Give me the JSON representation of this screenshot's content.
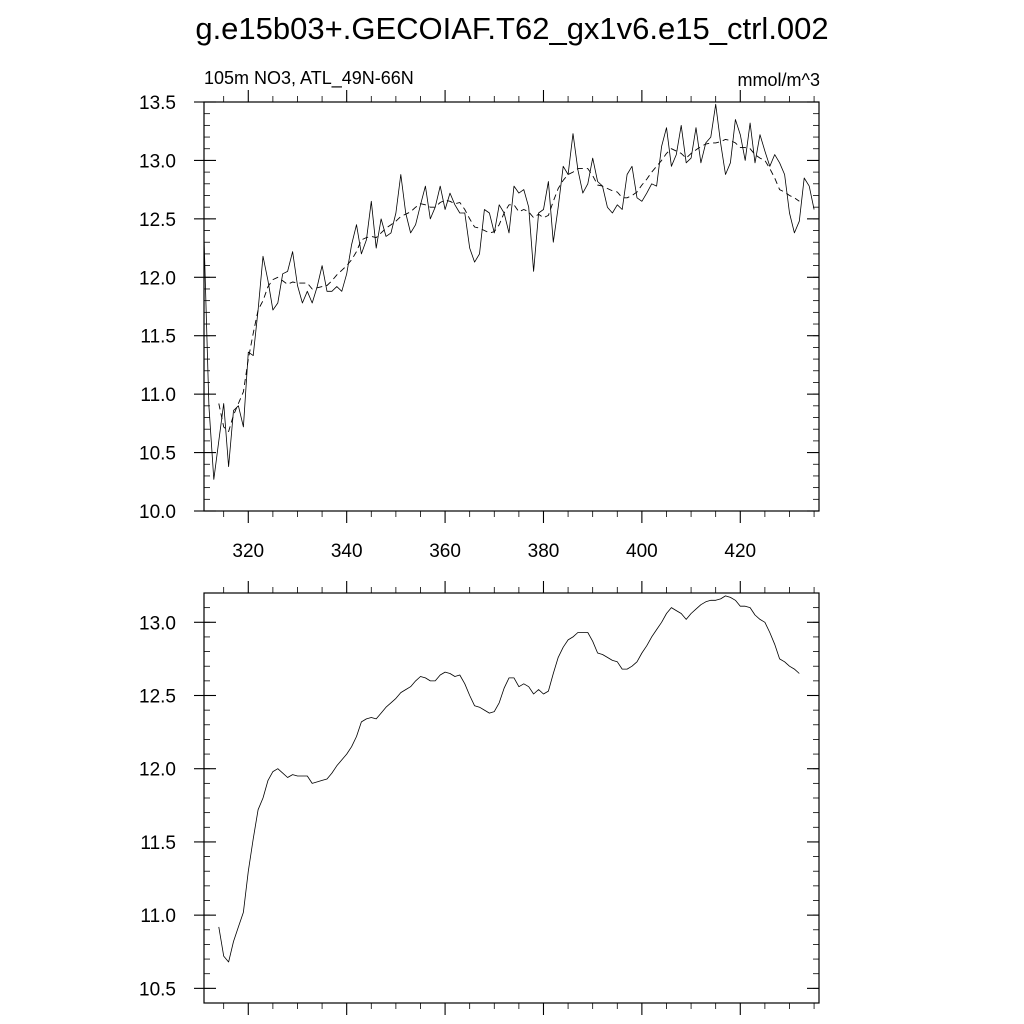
{
  "title": "g.e15b03+.GECOIAF.T62_gx1v6.e15_ctrl.002",
  "chart_data": [
    {
      "type": "line",
      "left_label": "105m NO3, ATL_49N-66N",
      "right_label": "mmol/m^3",
      "xlim": [
        311,
        436
      ],
      "ylim": [
        10.0,
        13.5
      ],
      "yticks": [
        10.0,
        10.5,
        11.0,
        11.5,
        12.0,
        12.5,
        13.0,
        13.5
      ],
      "ytick_labels": [
        "10.0",
        "10.5",
        "11.0",
        "11.5",
        "12.0",
        "12.5",
        "13.0",
        "13.5"
      ],
      "xticks": [
        320,
        340,
        360,
        380,
        400,
        420
      ],
      "xtick_labels": [
        "320",
        "340",
        "360",
        "380",
        "400",
        "420"
      ],
      "grid": false,
      "series": [
        {
          "style": "solid",
          "x": [
            311,
            312,
            313,
            314,
            315,
            316,
            317,
            318,
            319,
            320,
            321,
            322,
            323,
            324,
            325,
            326,
            327,
            328,
            329,
            330,
            331,
            332,
            333,
            334,
            335,
            336,
            337,
            338,
            339,
            340,
            341,
            342,
            343,
            344,
            345,
            346,
            347,
            348,
            349,
            350,
            351,
            352,
            353,
            354,
            355,
            356,
            357,
            358,
            359,
            360,
            361,
            362,
            363,
            364,
            365,
            366,
            367,
            368,
            369,
            370,
            371,
            372,
            373,
            374,
            375,
            376,
            377,
            378,
            379,
            380,
            381,
            382,
            383,
            384,
            385,
            386,
            387,
            388,
            389,
            390,
            391,
            392,
            393,
            394,
            395,
            396,
            397,
            398,
            399,
            400,
            401,
            402,
            403,
            404,
            405,
            406,
            407,
            408,
            409,
            410,
            411,
            412,
            413,
            414,
            415,
            416,
            417,
            418,
            419,
            420,
            421,
            422,
            423,
            424,
            425,
            426,
            427,
            428,
            429,
            430,
            431,
            432,
            433,
            434,
            435
          ],
          "values": [
            12.35,
            10.9,
            10.27,
            10.6,
            10.92,
            10.38,
            10.86,
            10.9,
            10.72,
            11.36,
            11.33,
            11.72,
            12.18,
            11.97,
            11.72,
            11.78,
            12.03,
            12.05,
            12.22,
            11.93,
            11.78,
            11.88,
            11.78,
            11.92,
            12.1,
            11.88,
            11.88,
            11.92,
            11.88,
            12.03,
            12.28,
            12.45,
            12.2,
            12.32,
            12.65,
            12.25,
            12.5,
            12.35,
            12.38,
            12.55,
            12.88,
            12.55,
            12.38,
            12.45,
            12.62,
            12.78,
            12.5,
            12.6,
            12.78,
            12.58,
            12.72,
            12.62,
            12.55,
            12.55,
            12.25,
            12.13,
            12.2,
            12.58,
            12.55,
            12.38,
            12.62,
            12.55,
            12.38,
            12.78,
            12.72,
            12.75,
            12.6,
            12.05,
            12.55,
            12.58,
            12.82,
            12.3,
            12.6,
            12.95,
            12.88,
            13.23,
            12.92,
            12.72,
            12.8,
            13.02,
            12.82,
            12.78,
            12.6,
            12.55,
            12.62,
            12.58,
            12.88,
            12.95,
            12.68,
            12.65,
            12.72,
            12.8,
            12.78,
            13.12,
            13.28,
            12.95,
            13.05,
            13.3,
            12.98,
            13.02,
            13.28,
            12.98,
            13.15,
            13.2,
            13.48,
            13.15,
            12.88,
            12.98,
            13.35,
            13.22,
            13.0,
            13.32,
            12.98,
            13.22,
            13.08,
            12.95,
            13.05,
            12.98,
            12.88,
            12.55,
            12.38,
            12.48,
            12.85,
            12.78,
            12.58
          ]
        },
        {
          "style": "dashed",
          "x": [
            314,
            315,
            316,
            317,
            318,
            319,
            320,
            321,
            322,
            323,
            324,
            325,
            326,
            327,
            328,
            329,
            330,
            331,
            332,
            333,
            334,
            335,
            336,
            337,
            338,
            339,
            340,
            341,
            342,
            343,
            344,
            345,
            346,
            347,
            348,
            349,
            350,
            351,
            352,
            353,
            354,
            355,
            356,
            357,
            358,
            359,
            360,
            361,
            362,
            363,
            364,
            365,
            366,
            367,
            368,
            369,
            370,
            371,
            372,
            373,
            374,
            375,
            376,
            377,
            378,
            379,
            380,
            381,
            382,
            383,
            384,
            385,
            386,
            387,
            388,
            389,
            390,
            391,
            392,
            393,
            394,
            395,
            396,
            397,
            398,
            399,
            400,
            401,
            402,
            403,
            404,
            405,
            406,
            407,
            408,
            409,
            410,
            411,
            412,
            413,
            414,
            415,
            416,
            417,
            418,
            419,
            420,
            421,
            422,
            423,
            424,
            425,
            426,
            427,
            428,
            429,
            430,
            431,
            432
          ],
          "values": [
            10.92,
            10.72,
            10.68,
            10.82,
            10.92,
            11.02,
            11.3,
            11.52,
            11.72,
            11.8,
            11.92,
            11.98,
            12.0,
            11.97,
            11.94,
            11.96,
            11.95,
            11.95,
            11.95,
            11.9,
            11.91,
            11.92,
            11.93,
            11.97,
            12.02,
            12.06,
            12.1,
            12.15,
            12.22,
            12.32,
            12.34,
            12.35,
            12.34,
            12.38,
            12.42,
            12.45,
            12.48,
            12.52,
            12.54,
            12.56,
            12.6,
            12.63,
            12.62,
            12.6,
            12.6,
            12.64,
            12.66,
            12.65,
            12.63,
            12.64,
            12.58,
            12.5,
            12.43,
            12.42,
            12.4,
            12.38,
            12.39,
            12.45,
            12.55,
            12.62,
            12.62,
            12.56,
            12.58,
            12.56,
            12.51,
            12.54,
            12.51,
            12.53,
            12.65,
            12.76,
            12.83,
            12.88,
            12.9,
            12.93,
            12.93,
            12.93,
            12.87,
            12.79,
            12.78,
            12.76,
            12.74,
            12.73,
            12.68,
            12.68,
            12.7,
            12.73,
            12.79,
            12.84,
            12.9,
            12.95,
            13.0,
            13.06,
            13.1,
            13.08,
            13.06,
            13.02,
            13.06,
            13.09,
            13.12,
            13.14,
            13.15,
            13.15,
            13.16,
            13.18,
            13.17,
            13.15,
            13.11,
            13.11,
            13.1,
            13.05,
            13.02,
            13.0,
            12.93,
            12.85,
            12.75,
            12.73,
            12.7,
            12.68,
            12.65
          ]
        }
      ]
    },
    {
      "type": "line",
      "xlim": [
        311,
        436
      ],
      "ylim": [
        10.4,
        13.2
      ],
      "yticks": [
        10.5,
        11.0,
        11.5,
        12.0,
        12.5,
        13.0
      ],
      "ytick_labels": [
        "10.5",
        "11.0",
        "11.5",
        "12.0",
        "12.5",
        "13.0"
      ],
      "xticks": [
        320,
        340,
        360,
        380,
        400,
        420
      ],
      "grid": false,
      "series": [
        {
          "style": "solid",
          "x": [
            314,
            315,
            316,
            317,
            318,
            319,
            320,
            321,
            322,
            323,
            324,
            325,
            326,
            327,
            328,
            329,
            330,
            331,
            332,
            333,
            334,
            335,
            336,
            337,
            338,
            339,
            340,
            341,
            342,
            343,
            344,
            345,
            346,
            347,
            348,
            349,
            350,
            351,
            352,
            353,
            354,
            355,
            356,
            357,
            358,
            359,
            360,
            361,
            362,
            363,
            364,
            365,
            366,
            367,
            368,
            369,
            370,
            371,
            372,
            373,
            374,
            375,
            376,
            377,
            378,
            379,
            380,
            381,
            382,
            383,
            384,
            385,
            386,
            387,
            388,
            389,
            390,
            391,
            392,
            393,
            394,
            395,
            396,
            397,
            398,
            399,
            400,
            401,
            402,
            403,
            404,
            405,
            406,
            407,
            408,
            409,
            410,
            411,
            412,
            413,
            414,
            415,
            416,
            417,
            418,
            419,
            420,
            421,
            422,
            423,
            424,
            425,
            426,
            427,
            428,
            429,
            430,
            431,
            432
          ],
          "values": [
            10.92,
            10.72,
            10.68,
            10.82,
            10.92,
            11.02,
            11.3,
            11.52,
            11.72,
            11.8,
            11.92,
            11.98,
            12.0,
            11.97,
            11.94,
            11.96,
            11.95,
            11.95,
            11.95,
            11.9,
            11.91,
            11.92,
            11.93,
            11.97,
            12.02,
            12.06,
            12.1,
            12.15,
            12.22,
            12.32,
            12.34,
            12.35,
            12.34,
            12.38,
            12.42,
            12.45,
            12.48,
            12.52,
            12.54,
            12.56,
            12.6,
            12.63,
            12.62,
            12.6,
            12.6,
            12.64,
            12.66,
            12.65,
            12.63,
            12.64,
            12.58,
            12.5,
            12.43,
            12.42,
            12.4,
            12.38,
            12.39,
            12.45,
            12.55,
            12.62,
            12.62,
            12.56,
            12.58,
            12.56,
            12.51,
            12.54,
            12.51,
            12.53,
            12.65,
            12.76,
            12.83,
            12.88,
            12.9,
            12.93,
            12.93,
            12.93,
            12.87,
            12.79,
            12.78,
            12.76,
            12.74,
            12.73,
            12.68,
            12.68,
            12.7,
            12.73,
            12.79,
            12.84,
            12.9,
            12.95,
            13.0,
            13.06,
            13.1,
            13.08,
            13.06,
            13.02,
            13.06,
            13.09,
            13.12,
            13.14,
            13.15,
            13.15,
            13.16,
            13.18,
            13.17,
            13.15,
            13.11,
            13.11,
            13.1,
            13.05,
            13.02,
            13.0,
            12.93,
            12.85,
            12.75,
            12.73,
            12.7,
            12.68,
            12.65
          ]
        }
      ]
    }
  ]
}
